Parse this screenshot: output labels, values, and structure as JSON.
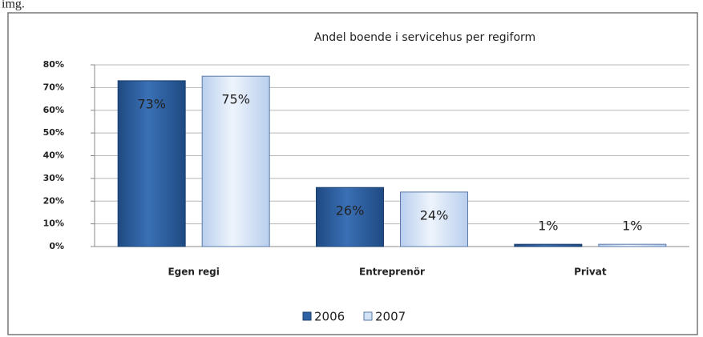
{
  "caption": "img.",
  "chart_data": {
    "type": "bar",
    "title": "Andel boende i servicehus per regiform",
    "categories": [
      "Egen regi",
      "Entreprenör",
      "Privat"
    ],
    "series": [
      {
        "name": "2006",
        "color": "#2f62a3",
        "values": [
          73,
          26,
          1
        ],
        "value_labels": [
          "73%",
          "26%",
          "1%"
        ]
      },
      {
        "name": "2007",
        "color": "#d3e3f6",
        "values": [
          75,
          24,
          1
        ],
        "value_labels": [
          "75%",
          "24%",
          "1%"
        ]
      }
    ],
    "ylim": [
      0,
      80
    ],
    "yticks": [
      {
        "value": 0,
        "label": "0%"
      },
      {
        "value": 10,
        "label": "10%"
      },
      {
        "value": 20,
        "label": "20%"
      },
      {
        "value": 30,
        "label": "30%"
      },
      {
        "value": 40,
        "label": "40%"
      },
      {
        "value": 50,
        "label": "50%"
      },
      {
        "value": 60,
        "label": "60%"
      },
      {
        "value": 70,
        "label": "70%"
      },
      {
        "value": 80,
        "label": "80%"
      }
    ],
    "grid": true,
    "legend": "bottom"
  }
}
